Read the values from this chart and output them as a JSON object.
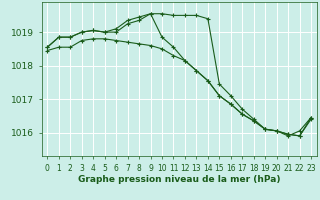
{
  "background_color": "#cceee8",
  "grid_color": "#ffffff",
  "line_color": "#1a5c1a",
  "xlabel": "Graphe pression niveau de la mer (hPa)",
  "xlim": [
    -0.5,
    23.5
  ],
  "ylim": [
    1015.3,
    1019.9
  ],
  "yticks": [
    1016,
    1017,
    1018,
    1019
  ],
  "xticks": [
    0,
    1,
    2,
    3,
    4,
    5,
    6,
    7,
    8,
    9,
    10,
    11,
    12,
    13,
    14,
    15,
    16,
    17,
    18,
    19,
    20,
    21,
    22,
    23
  ],
  "series1": [
    1018.55,
    1018.85,
    1018.85,
    1019.0,
    1019.05,
    1019.0,
    1019.0,
    1019.25,
    1019.35,
    1019.55,
    1018.85,
    1018.55,
    1018.15,
    1017.85,
    1017.55,
    1017.1,
    1016.85,
    1016.55,
    1016.35,
    1016.1,
    1016.05,
    1015.95,
    1015.9,
    1016.45
  ],
  "series2": [
    1018.55,
    1018.85,
    1018.85,
    1019.0,
    1019.05,
    1019.0,
    1019.1,
    1019.35,
    1019.45,
    1019.55,
    1019.55,
    1019.5,
    1019.5,
    1019.5,
    1019.4,
    1017.45,
    1017.1,
    1016.7,
    1016.4,
    1016.1,
    1016.05,
    1015.9,
    1016.05,
    1016.45
  ],
  "series3": [
    1018.45,
    1018.55,
    1018.55,
    1018.75,
    1018.8,
    1018.8,
    1018.75,
    1018.7,
    1018.65,
    1018.6,
    1018.5,
    1018.3,
    1018.15,
    1017.85,
    1017.55,
    1017.1,
    1016.85,
    1016.55,
    1016.35,
    1016.1,
    1016.05,
    1015.95,
    1015.9,
    1016.4
  ]
}
